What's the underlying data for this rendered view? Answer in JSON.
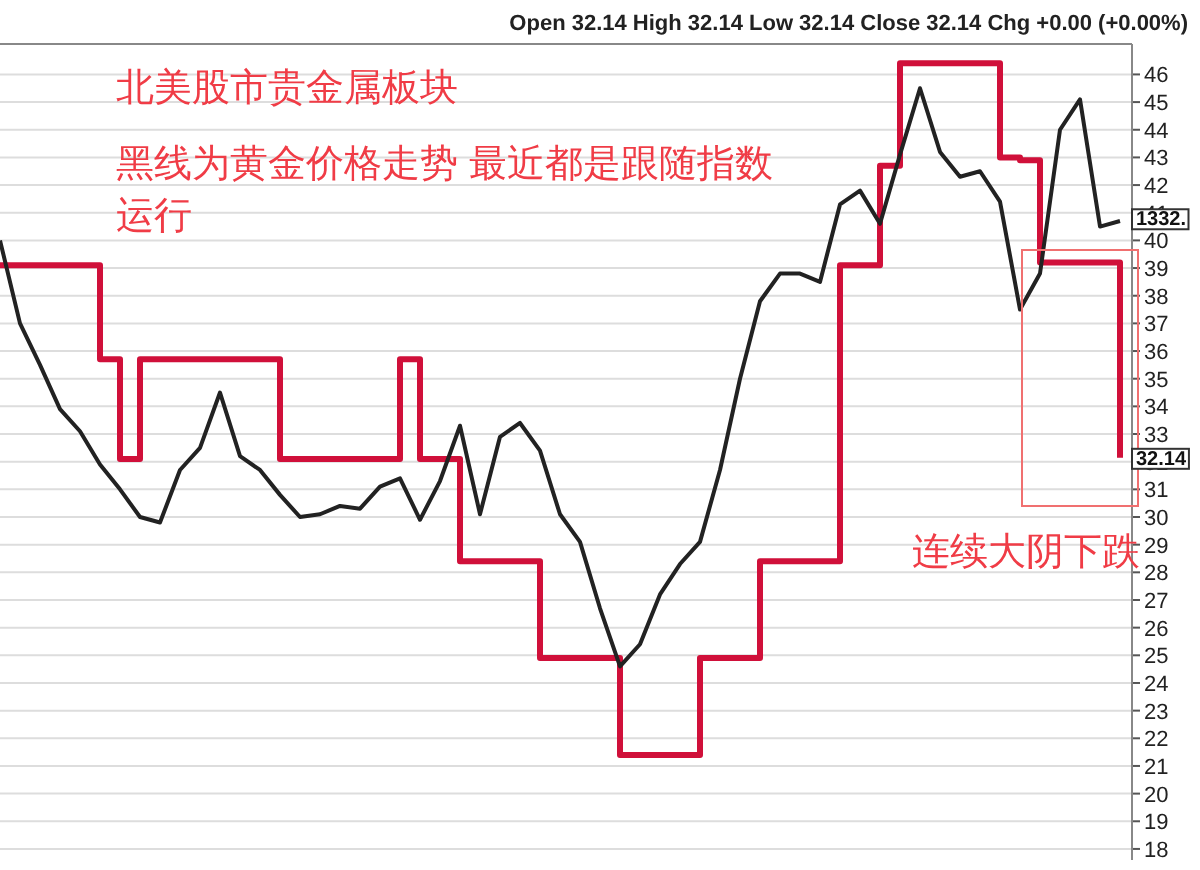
{
  "chart_data": {
    "type": "line",
    "ylim": [
      17.6,
      47.1
    ],
    "categories": [
      null,
      null,
      null,
      null,
      null,
      null,
      null,
      null,
      null,
      null,
      null,
      null,
      null,
      null,
      null,
      null,
      null,
      null,
      null,
      null,
      null,
      null,
      null,
      null,
      null,
      null,
      null,
      null,
      null,
      null,
      null,
      null,
      null,
      null,
      null,
      null,
      null,
      null,
      null,
      null,
      null,
      null,
      null,
      null,
      null,
      null,
      null,
      null,
      null,
      null,
      null,
      null,
      null,
      null,
      null,
      null,
      null
    ],
    "yticks": [
      18,
      19,
      20,
      21,
      22,
      23,
      24,
      25,
      26,
      27,
      28,
      29,
      30,
      31,
      32,
      33,
      34,
      35,
      36,
      37,
      38,
      39,
      40,
      41,
      42,
      43,
      44,
      45,
      46
    ],
    "tick_labels": "y",
    "grid": "y",
    "series": [
      {
        "type": "step",
        "color": "#d0103a",
        "values": [
          39.1,
          39.1,
          39.1,
          39.1,
          39.1,
          35.7,
          32.1,
          35.7,
          35.7,
          35.7,
          35.7,
          35.7,
          35.7,
          35.7,
          32.1,
          32.1,
          32.1,
          32.1,
          32.1,
          32.1,
          35.7,
          32.1,
          32.1,
          28.4,
          28.4,
          28.4,
          28.4,
          24.9,
          24.9,
          24.9,
          24.9,
          21.4,
          21.4,
          21.4,
          21.4,
          24.9,
          24.9,
          24.9,
          28.4,
          28.4,
          28.4,
          28.4,
          39.1,
          39.1,
          42.7,
          46.4,
          46.4,
          46.4,
          46.4,
          46.4,
          43.0,
          42.9,
          39.2,
          39.2,
          39.2,
          39.2,
          32.14
        ]
      },
      {
        "color": "#222222",
        "values": [
          40.0,
          37.0,
          35.5,
          33.9,
          33.1,
          31.9,
          31.0,
          30.0,
          29.8,
          31.7,
          32.5,
          34.5,
          32.2,
          31.7,
          30.8,
          30.0,
          30.1,
          30.4,
          30.3,
          31.1,
          31.4,
          29.9,
          31.3,
          33.3,
          30.1,
          32.9,
          33.4,
          32.4,
          30.1,
          29.1,
          26.7,
          24.6,
          25.4,
          27.2,
          28.3,
          29.1,
          31.7,
          35.0,
          37.8,
          38.8,
          38.8,
          38.5,
          41.3,
          41.8,
          40.6,
          43.1,
          45.5,
          43.2,
          42.3,
          42.5,
          41.4,
          37.5,
          38.8,
          44.0,
          45.1,
          40.5,
          40.7
        ]
      }
    ],
    "annotations": [
      "北美股市贵金属板块",
      "黑线为黄金价格走势 最近都是跟随指数",
      "运行",
      "连续大阴下跌",
      "Open 32.14 High 32.14 Low 32.14 Close 32.14 Chg +0.00 (+0.00%)",
      {
        "text": "1332.",
        "y": 40.8
      },
      {
        "text": "32.14",
        "y": 32.14
      }
    ]
  }
}
